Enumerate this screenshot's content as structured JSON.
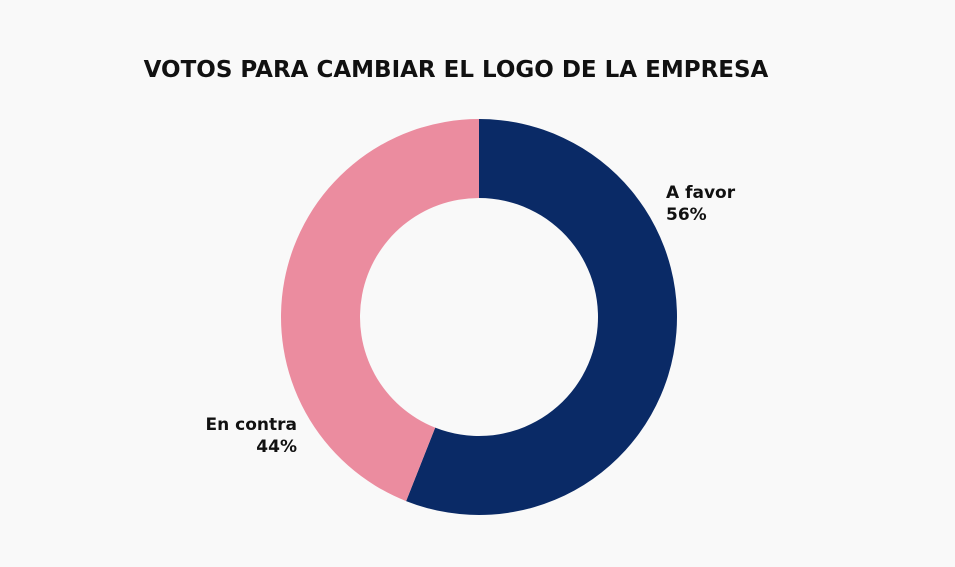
{
  "chart_data": {
    "type": "pie",
    "variant": "donut",
    "title": "VOTOS PARA CAMBIAR EL LOGO DE LA EMPRESA",
    "categories": [
      "A favor",
      "En contra"
    ],
    "values": [
      56,
      44
    ],
    "value_labels": [
      "56%",
      "44%"
    ],
    "colors": [
      "#0a2a66",
      "#eb8c9f"
    ],
    "legend": "none"
  },
  "colors": {
    "background": "#f9f9f9",
    "text": "#111111"
  }
}
